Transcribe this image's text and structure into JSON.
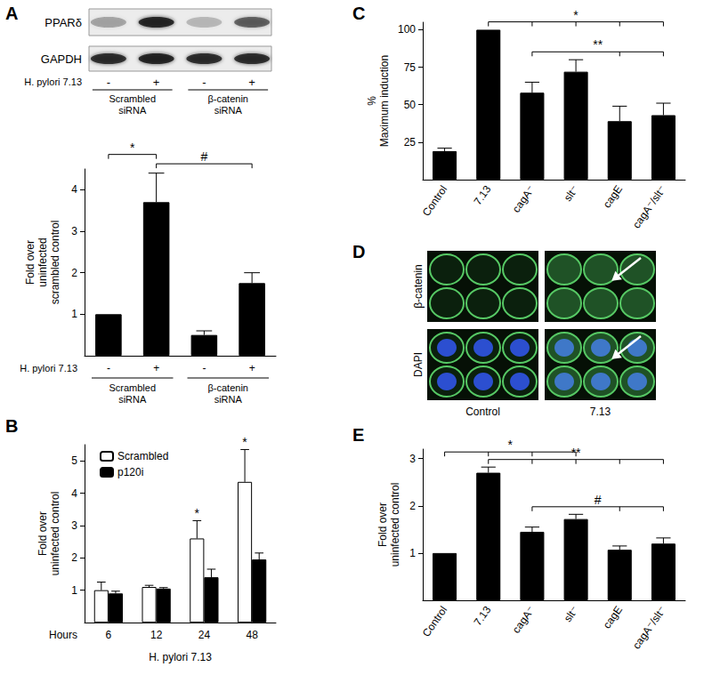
{
  "panel_labels": [
    "A",
    "B",
    "C",
    "D",
    "E"
  ],
  "blot": {
    "rows": [
      {
        "label": "PPARδ",
        "intensity": [
          0.3,
          0.85,
          0.2,
          0.55
        ]
      },
      {
        "label": "GAPDH",
        "intensity": [
          0.8,
          0.85,
          0.8,
          0.8
        ]
      }
    ],
    "infection_label": "H. pylori 7.13",
    "lanes": [
      "-",
      "+",
      "-",
      "+"
    ],
    "groups": [
      {
        "label": "Scrambled\nsiRNA",
        "from": 0,
        "to": 1
      },
      {
        "label": "β-catenin\nsiRNA",
        "from": 2,
        "to": 3
      }
    ]
  },
  "micrographs": {
    "rows": [
      "β-catenin",
      "DAPI"
    ],
    "columns": [
      "Control",
      "7.13"
    ]
  },
  "chart_data": [
    {
      "type": "bar",
      "y_label": "Fold over\nuninfected\nscrambled control",
      "x_label": "H. pylori 7.13",
      "categories": [
        "-",
        "+",
        "-",
        "+"
      ],
      "values": [
        1,
        3.7,
        0.5,
        1.75
      ],
      "errors": [
        null,
        0.7,
        0.1,
        0.25
      ],
      "color": "#000000",
      "groups": [
        {
          "label": "Scrambled\nsiRNA",
          "from": 0,
          "to": 1
        },
        {
          "label": "β-catenin\nsiRNA",
          "from": 2,
          "to": 3
        }
      ],
      "ylim": [
        0,
        4.5
      ],
      "yticks": [
        1,
        2,
        3,
        4
      ],
      "grid": false,
      "annotations": [
        {
          "from": 0,
          "to": [
            1
          ],
          "text": "*"
        },
        {
          "from": 1,
          "to": [
            3
          ],
          "text": "#"
        }
      ]
    },
    {
      "type": "bar",
      "y_label": "Fold over\nuninfected control",
      "category_label": "Hours",
      "x_label": "H. pylori 7.13",
      "categories": [
        "6",
        "12",
        "24",
        "48"
      ],
      "series": [
        {
          "name": "Scrambled",
          "color": "#ffffff",
          "values": [
            1.0,
            1.1,
            2.6,
            4.35
          ],
          "errors": [
            0.25,
            0.05,
            0.55,
            1.0
          ]
        },
        {
          "name": "p120i",
          "color": "#000000",
          "values": [
            0.9,
            1.05,
            1.4,
            1.95
          ],
          "errors": [
            0.07,
            0.03,
            0.25,
            0.2
          ]
        }
      ],
      "ylim": [
        0,
        5.5
      ],
      "yticks": [
        1,
        2,
        3,
        4,
        5
      ],
      "grid": false,
      "legend": "upper left",
      "annotations": [
        {
          "series": 0,
          "at": 2,
          "text": "*"
        },
        {
          "series": 0,
          "at": 3,
          "text": "*"
        }
      ]
    },
    {
      "type": "bar",
      "y_label": "%\nMaximum induction",
      "categories": [
        "Control",
        "7.13",
        "cagA⁻",
        "slt⁻",
        "cagE",
        "cagA⁻/slt⁻"
      ],
      "values": [
        19,
        100,
        58,
        72,
        39,
        43
      ],
      "errors": [
        2,
        null,
        7,
        8,
        10,
        8
      ],
      "color": "#000000",
      "ylim": [
        0,
        105
      ],
      "yticks": [
        25,
        50,
        75,
        100
      ],
      "grid": false,
      "annotations": [
        {
          "from": 1,
          "to": [
            2,
            3,
            4,
            5
          ],
          "text": "*"
        },
        {
          "from": 2,
          "to": [
            4,
            5
          ],
          "text": "**"
        }
      ]
    },
    {
      "type": "bar",
      "y_label": "Fold over\nuninfected control",
      "categories": [
        "Control",
        "7.13",
        "cagA⁻",
        "slt⁻",
        "cagE",
        "cagA⁻/slt⁻"
      ],
      "values": [
        1,
        2.7,
        1.45,
        1.72,
        1.07,
        1.2
      ],
      "errors": [
        null,
        0.12,
        0.1,
        0.1,
        0.08,
        0.12
      ],
      "color": "#000000",
      "ylim": [
        0,
        3.2
      ],
      "yticks": [
        1,
        2,
        3
      ],
      "grid": false,
      "annotations": [
        {
          "from": 0,
          "to": [
            1,
            2,
            3
          ],
          "text": "*"
        },
        {
          "from": 1,
          "to": [
            2,
            3,
            4,
            5
          ],
          "text": "**"
        },
        {
          "from": 2,
          "to": [
            4,
            5
          ],
          "text": "#"
        }
      ]
    }
  ]
}
